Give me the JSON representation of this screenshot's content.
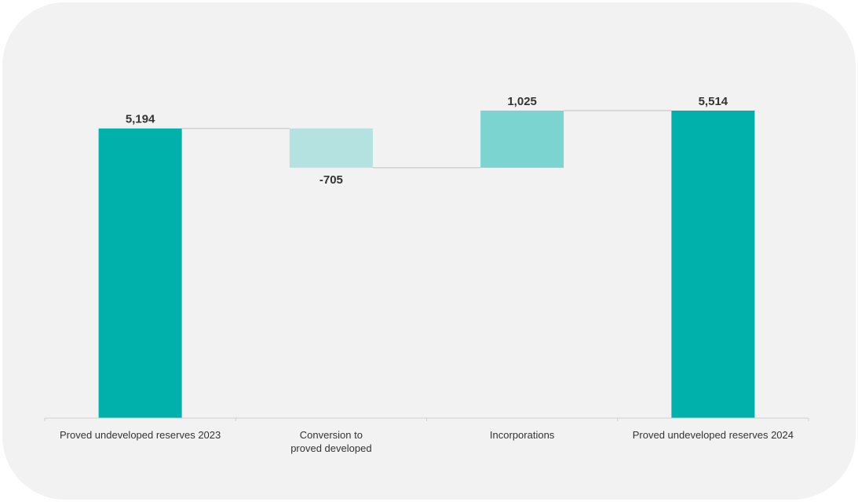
{
  "chart_data": {
    "type": "waterfall",
    "categories": [
      [
        "Proved undeveloped reserves 2023"
      ],
      [
        "Conversion to",
        "proved developed"
      ],
      [
        "Incorporations"
      ],
      [
        "Proved undeveloped reserves 2024"
      ]
    ],
    "values": [
      5194,
      -705,
      1025,
      5514
    ],
    "kinds": [
      "total",
      "delta",
      "delta",
      "total"
    ],
    "data_labels": [
      "5,194",
      "-705",
      "1,025",
      "5,514"
    ],
    "ylim": [
      0,
      5514
    ],
    "grid": false,
    "legend": "none",
    "colors": {
      "total": "#00b0aa",
      "decrease": "#b3e2e0",
      "increase": "#7cd4d0",
      "connector": "#bfbfbf",
      "axis": "#d0d0d0",
      "text": "#333333"
    }
  }
}
